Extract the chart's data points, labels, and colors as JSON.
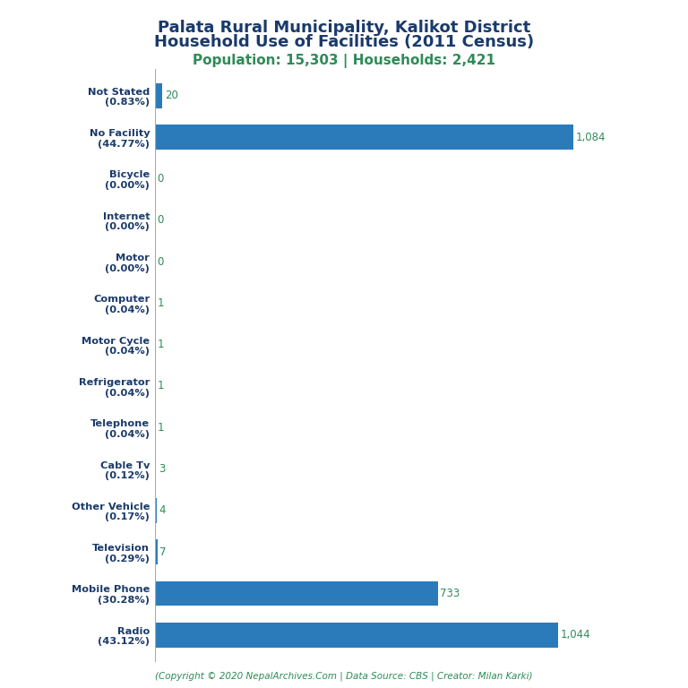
{
  "title_line1": "Palata Rural Municipality, Kalikot District",
  "title_line2": "Household Use of Facilities (2011 Census)",
  "subtitle": "Population: 15,303 | Households: 2,421",
  "footer": "(Copyright © 2020 NepalArchives.Com | Data Source: CBS | Creator: Milan Karki)",
  "categories": [
    "Radio\n(43.12%)",
    "Mobile Phone\n(30.28%)",
    "Television\n(0.29%)",
    "Other Vehicle\n(0.17%)",
    "Cable Tv\n(0.12%)",
    "Telephone\n(0.04%)",
    "Refrigerator\n(0.04%)",
    "Motor Cycle\n(0.04%)",
    "Computer\n(0.04%)",
    "Motor\n(0.00%)",
    "Internet\n(0.00%)",
    "Bicycle\n(0.00%)",
    "No Facility\n(44.77%)",
    "Not Stated\n(0.83%)"
  ],
  "values": [
    1044,
    733,
    7,
    4,
    3,
    1,
    1,
    1,
    1,
    0,
    0,
    0,
    1084,
    20
  ],
  "bar_color": "#2b7bba",
  "value_color": "#2e8b57",
  "label_color": "#1a3a6b",
  "title_color": "#1a3a6b",
  "subtitle_color": "#2e8b57",
  "footer_color": "#2e8b57",
  "background_color": "#ffffff",
  "xlim": [
    0,
    1220
  ]
}
